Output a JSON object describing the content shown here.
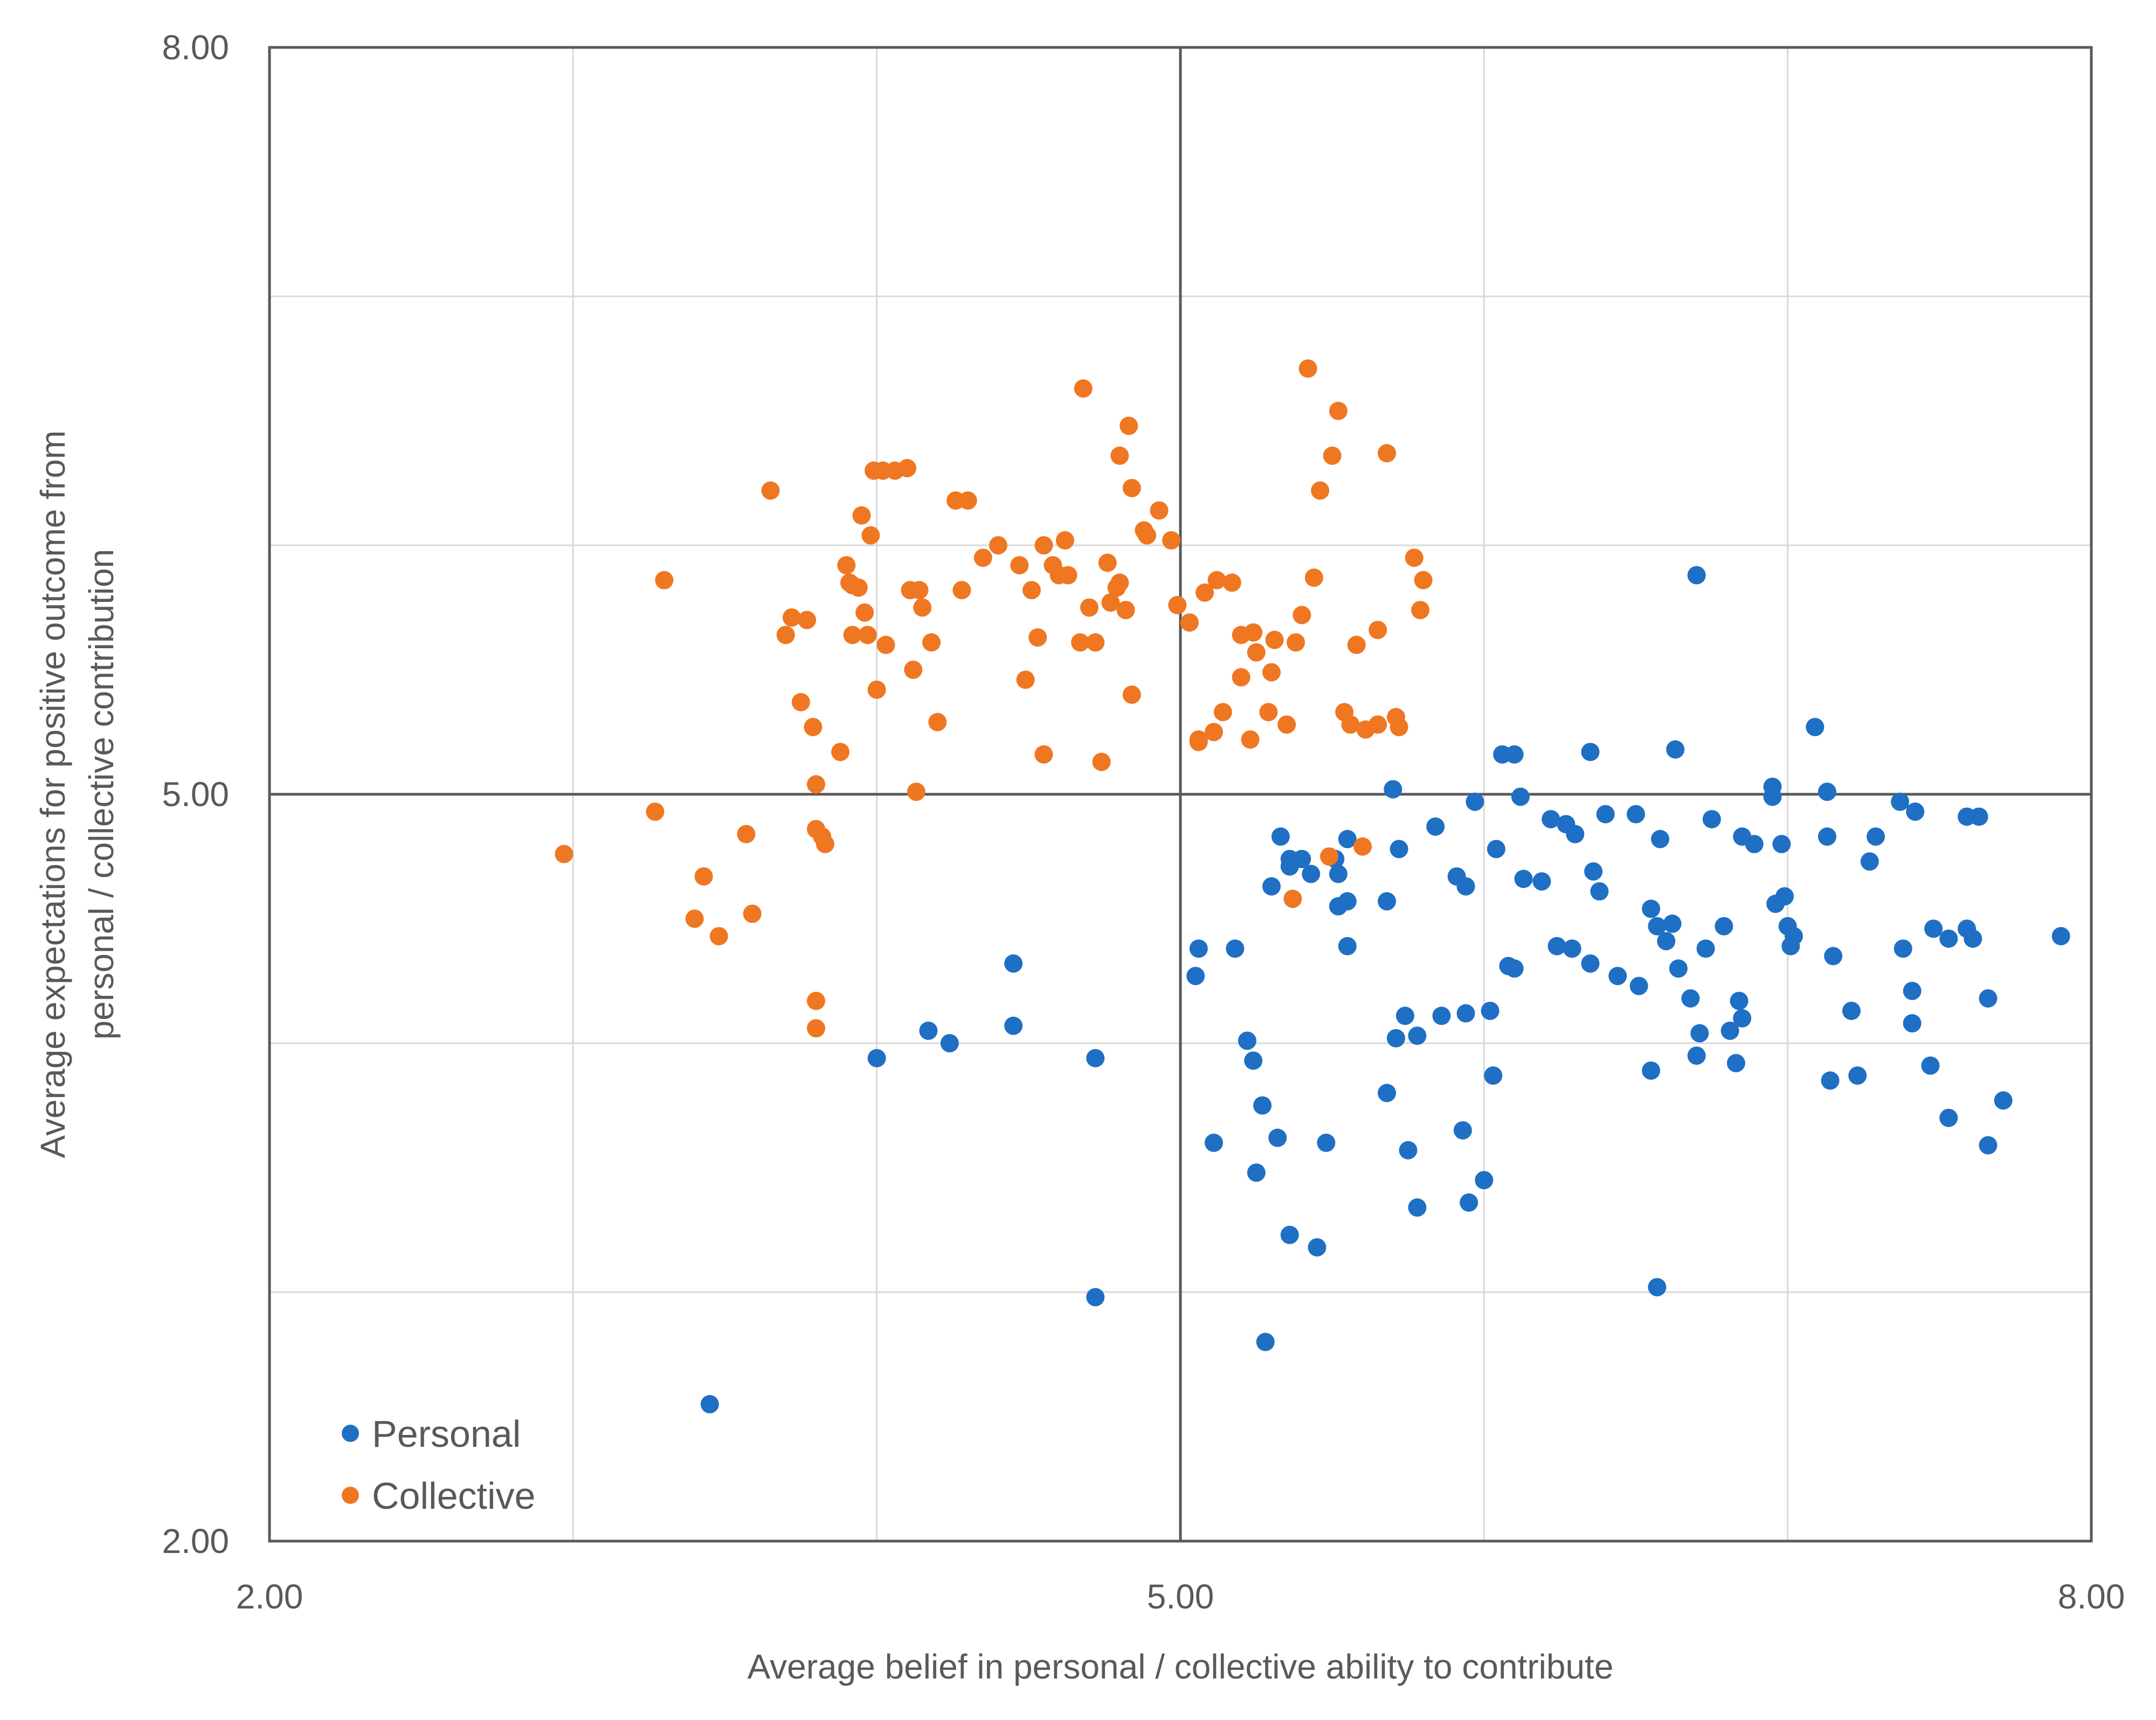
{
  "chart_data": {
    "type": "scatter",
    "xlabel": "Average belief in personal / collective ability to  contribute",
    "ylabel_line1": "Average expectations for positive outcome from",
    "ylabel_line2": "personal / collective contribution",
    "xlim": [
      2.0,
      8.0
    ],
    "ylim": [
      2.0,
      8.0
    ],
    "x_ticks": [
      {
        "value": 2.0,
        "label": "2.00"
      },
      {
        "value": 5.0,
        "label": "5.00"
      },
      {
        "value": 8.0,
        "label": "8.00"
      }
    ],
    "y_ticks": [
      {
        "value": 2.0,
        "label": "2.00"
      },
      {
        "value": 5.0,
        "label": "5.00"
      },
      {
        "value": 8.0,
        "label": "8.00"
      }
    ],
    "minor_grid_x": [
      3.0,
      4.0,
      6.0,
      7.0
    ],
    "minor_grid_y": [
      3.0,
      4.0,
      6.0,
      7.0
    ],
    "grid": true,
    "center_lines": {
      "x": 5.0,
      "y": 5.0
    },
    "legend_position": "bottom-left",
    "series": [
      {
        "name": "Personal",
        "color": "#1f6fc5",
        "points": [
          [
            3.45,
            2.55
          ],
          [
            4.72,
            2.98
          ],
          [
            5.28,
            2.8
          ],
          [
            6.57,
            3.02
          ],
          [
            5.36,
            3.23
          ],
          [
            5.45,
            3.18
          ],
          [
            5.78,
            3.34
          ],
          [
            5.95,
            3.36
          ],
          [
            5.25,
            3.48
          ],
          [
            5.32,
            3.62
          ],
          [
            5.48,
            3.6
          ],
          [
            5.11,
            3.6
          ],
          [
            5.75,
            3.57
          ],
          [
            5.27,
            3.75
          ],
          [
            5.68,
            3.8
          ],
          [
            5.93,
            3.65
          ],
          [
            6.03,
            3.87
          ],
          [
            6.0,
            3.45
          ],
          [
            5.24,
            3.93
          ],
          [
            5.78,
            4.03
          ],
          [
            5.74,
            4.11
          ],
          [
            5.71,
            4.02
          ],
          [
            5.86,
            4.11
          ],
          [
            5.94,
            4.12
          ],
          [
            6.02,
            4.13
          ],
          [
            4.72,
            3.94
          ],
          [
            5.22,
            4.01
          ],
          [
            4.0,
            3.94
          ],
          [
            4.24,
            4.0
          ],
          [
            4.17,
            4.05
          ],
          [
            4.45,
            4.07
          ],
          [
            5.05,
            4.27
          ],
          [
            5.06,
            4.38
          ],
          [
            5.18,
            4.38
          ],
          [
            5.55,
            4.39
          ],
          [
            4.45,
            4.32
          ],
          [
            6.55,
            3.89
          ],
          [
            6.35,
            4.32
          ],
          [
            6.29,
            4.38
          ],
          [
            6.24,
            4.39
          ],
          [
            6.44,
            4.27
          ],
          [
            6.51,
            4.23
          ],
          [
            6.55,
            4.54
          ],
          [
            6.68,
            4.18
          ],
          [
            6.84,
            4.17
          ],
          [
            6.85,
            4.1
          ],
          [
            6.81,
            4.05
          ],
          [
            6.71,
            4.04
          ],
          [
            6.96,
            4.56
          ],
          [
            7.27,
            4.73
          ],
          [
            7.48,
            4.46
          ],
          [
            7.59,
            4.46
          ],
          [
            7.61,
            4.42
          ],
          [
            7.38,
            4.38
          ],
          [
            7.15,
            4.35
          ],
          [
            7.02,
            4.43
          ],
          [
            7.01,
            4.39
          ],
          [
            7.0,
            4.47
          ],
          [
            6.62,
            4.48
          ],
          [
            6.57,
            4.47
          ],
          [
            6.38,
            4.61
          ],
          [
            6.08,
            4.31
          ],
          [
            6.1,
            4.3
          ],
          [
            6.6,
            4.41
          ],
          [
            6.64,
            4.3
          ],
          [
            6.73,
            4.38
          ],
          [
            6.79,
            4.47
          ],
          [
            7.21,
            4.13
          ],
          [
            7.41,
            4.08
          ],
          [
            7.41,
            4.21
          ],
          [
            7.53,
            4.42
          ],
          [
            7.66,
            4.18
          ],
          [
            7.9,
            4.43
          ],
          [
            6.7,
            3.95
          ],
          [
            6.83,
            3.92
          ],
          [
            7.14,
            3.85
          ],
          [
            7.23,
            3.87
          ],
          [
            7.47,
            3.91
          ],
          [
            7.66,
            3.59
          ],
          [
            7.71,
            3.77
          ],
          [
            7.53,
            3.7
          ],
          [
            5.36,
            4.74
          ],
          [
            5.4,
            4.74
          ],
          [
            5.43,
            4.68
          ],
          [
            5.51,
            4.74
          ],
          [
            5.72,
            4.78
          ],
          [
            5.91,
            4.67
          ],
          [
            5.94,
            4.63
          ],
          [
            6.13,
            4.66
          ],
          [
            6.19,
            4.65
          ],
          [
            6.04,
            4.78
          ],
          [
            6.22,
            4.9
          ],
          [
            6.27,
            4.88
          ],
          [
            6.3,
            4.84
          ],
          [
            6.4,
            4.92
          ],
          [
            6.5,
            4.92
          ],
          [
            6.58,
            4.82
          ],
          [
            6.75,
            4.9
          ],
          [
            6.85,
            4.83
          ],
          [
            6.95,
            4.99
          ],
          [
            7.13,
            4.83
          ],
          [
            7.29,
            4.83
          ],
          [
            7.37,
            4.97
          ],
          [
            7.42,
            4.93
          ],
          [
            7.59,
            4.91
          ],
          [
            7.63,
            4.91
          ],
          [
            6.95,
            5.03
          ],
          [
            7.13,
            5.01
          ],
          [
            6.63,
            5.18
          ],
          [
            6.35,
            5.17
          ],
          [
            6.1,
            5.16
          ],
          [
            6.06,
            5.16
          ],
          [
            5.7,
            5.02
          ],
          [
            5.55,
            4.82
          ],
          [
            5.3,
            4.63
          ],
          [
            5.33,
            4.83
          ],
          [
            5.84,
            4.87
          ],
          [
            5.97,
            4.97
          ],
          [
            6.12,
            4.99
          ],
          [
            7.09,
            5.27
          ],
          [
            6.36,
            4.69
          ],
          [
            6.7,
            5.88
          ],
          [
            6.89,
            4.8
          ],
          [
            6.98,
            4.8
          ],
          [
            5.52,
            4.68
          ],
          [
            6.99,
            4.59
          ],
          [
            5.55,
            4.57
          ],
          [
            5.36,
            4.71
          ],
          [
            5.68,
            4.57
          ],
          [
            5.52,
            4.55
          ]
        ]
      },
      {
        "name": "Collective",
        "color": "#ef7722",
        "points": [
          [
            2.97,
            4.76
          ],
          [
            3.3,
            5.86
          ],
          [
            3.27,
            4.93
          ],
          [
            3.4,
            4.5
          ],
          [
            3.43,
            4.67
          ],
          [
            3.48,
            4.43
          ],
          [
            3.57,
            4.84
          ],
          [
            3.59,
            4.52
          ],
          [
            3.65,
            6.22
          ],
          [
            3.7,
            5.64
          ],
          [
            3.77,
            5.7
          ],
          [
            3.72,
            5.71
          ],
          [
            3.75,
            5.37
          ],
          [
            3.79,
            5.27
          ],
          [
            3.8,
            5.04
          ],
          [
            3.8,
            4.86
          ],
          [
            3.82,
            4.83
          ],
          [
            3.83,
            4.8
          ],
          [
            3.8,
            4.06
          ],
          [
            3.8,
            4.17
          ],
          [
            3.88,
            5.17
          ],
          [
            3.92,
            5.64
          ],
          [
            3.94,
            5.83
          ],
          [
            3.92,
            5.84
          ],
          [
            3.96,
            5.73
          ],
          [
            3.91,
            5.85
          ],
          [
            3.9,
            5.92
          ],
          [
            3.97,
            5.64
          ],
          [
            3.98,
            6.04
          ],
          [
            3.95,
            6.12
          ],
          [
            3.99,
            6.3
          ],
          [
            4.02,
            6.3
          ],
          [
            4.0,
            5.42
          ],
          [
            4.03,
            5.6
          ],
          [
            4.06,
            6.3
          ],
          [
            4.11,
            5.82
          ],
          [
            4.1,
            6.31
          ],
          [
            4.15,
            5.75
          ],
          [
            4.14,
            5.82
          ],
          [
            4.12,
            5.5
          ],
          [
            4.13,
            5.01
          ],
          [
            4.2,
            5.29
          ],
          [
            4.18,
            5.61
          ],
          [
            4.28,
            5.82
          ],
          [
            4.26,
            6.18
          ],
          [
            4.3,
            6.18
          ],
          [
            4.35,
            5.95
          ],
          [
            4.4,
            6.0
          ],
          [
            4.47,
            5.92
          ],
          [
            4.51,
            5.82
          ],
          [
            4.55,
            6.0
          ],
          [
            4.58,
            5.92
          ],
          [
            4.62,
            6.02
          ],
          [
            4.49,
            5.46
          ],
          [
            4.53,
            5.63
          ],
          [
            4.6,
            5.88
          ],
          [
            4.63,
            5.88
          ],
          [
            4.67,
            5.61
          ],
          [
            4.7,
            5.75
          ],
          [
            4.72,
            5.61
          ],
          [
            4.77,
            5.77
          ],
          [
            4.82,
            5.74
          ],
          [
            4.84,
            5.4
          ],
          [
            4.76,
            5.93
          ],
          [
            4.8,
            6.36
          ],
          [
            4.83,
            6.48
          ],
          [
            4.84,
            6.23
          ],
          [
            4.89,
            6.04
          ],
          [
            4.79,
            5.83
          ],
          [
            4.8,
            5.85
          ],
          [
            4.88,
            6.06
          ],
          [
            4.93,
            6.14
          ],
          [
            4.97,
            6.02
          ],
          [
            4.99,
            5.76
          ],
          [
            5.03,
            5.69
          ],
          [
            5.08,
            5.81
          ],
          [
            5.12,
            5.86
          ],
          [
            5.17,
            5.85
          ],
          [
            5.2,
            5.64
          ],
          [
            5.24,
            5.65
          ],
          [
            5.3,
            5.49
          ],
          [
            5.31,
            5.62
          ],
          [
            5.38,
            5.61
          ],
          [
            5.4,
            5.72
          ],
          [
            5.14,
            5.33
          ],
          [
            5.23,
            5.22
          ],
          [
            5.06,
            5.21
          ],
          [
            5.11,
            5.25
          ],
          [
            5.29,
            5.33
          ],
          [
            5.35,
            5.28
          ],
          [
            5.2,
            5.47
          ],
          [
            5.25,
            5.57
          ],
          [
            5.44,
            5.87
          ],
          [
            5.46,
            6.22
          ],
          [
            5.5,
            6.36
          ],
          [
            5.52,
            6.54
          ],
          [
            4.68,
            6.63
          ],
          [
            5.42,
            6.71
          ],
          [
            5.68,
            6.37
          ],
          [
            5.77,
            5.95
          ],
          [
            5.79,
            5.74
          ],
          [
            5.8,
            5.86
          ],
          [
            5.65,
            5.66
          ],
          [
            5.58,
            5.6
          ],
          [
            5.6,
            4.79
          ],
          [
            5.37,
            4.58
          ],
          [
            5.49,
            4.75
          ],
          [
            5.61,
            5.26
          ],
          [
            5.65,
            5.28
          ],
          [
            5.71,
            5.31
          ],
          [
            5.72,
            5.27
          ],
          [
            5.56,
            5.28
          ],
          [
            4.55,
            5.16
          ],
          [
            4.74,
            5.13
          ],
          [
            5.06,
            5.22
          ],
          [
            5.54,
            5.33
          ]
        ]
      }
    ]
  }
}
